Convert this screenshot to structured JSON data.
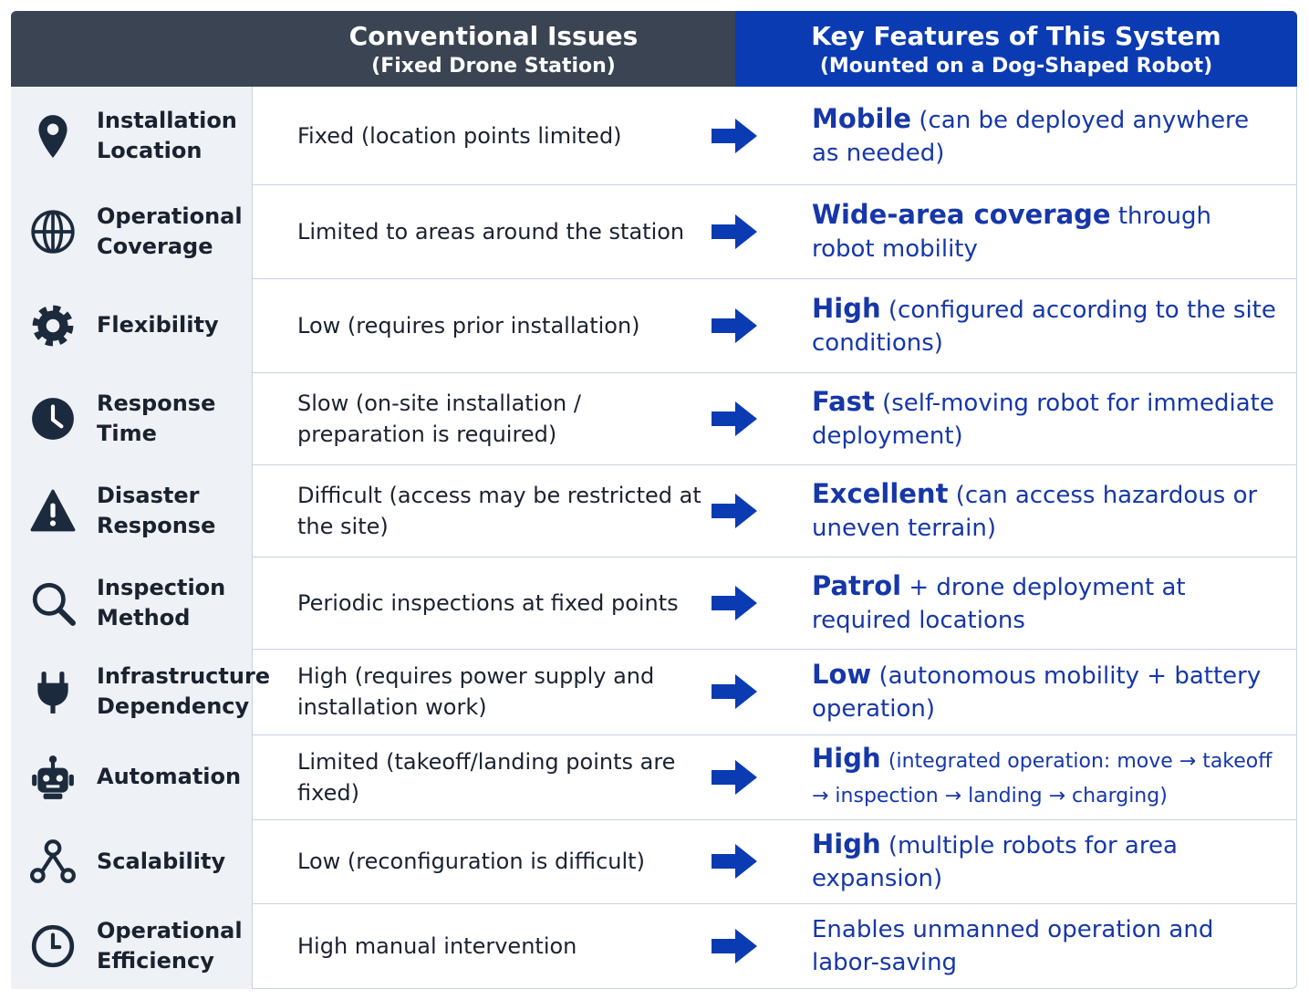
{
  "header": {
    "conventional": {
      "title": "Conventional Issues",
      "subtitle": "(Fixed Drone Station)"
    },
    "features": {
      "title": "Key Features of This System",
      "subtitle": "(Mounted on a Dog-Shaped Robot)"
    }
  },
  "rows": [
    {
      "label": "Installation Location",
      "conventional": "Fixed (location points limited)",
      "feature_bold": "Mobile",
      "feature_rest": "(can be deployed anywhere as needed)"
    },
    {
      "label": "Operational Coverage",
      "conventional": "Limited to areas around the station",
      "feature_bold": "Wide-area coverage",
      "feature_rest": "through robot mobility"
    },
    {
      "label": "Flexibility",
      "conventional": "Low (requires prior installation)",
      "feature_bold": "High",
      "feature_rest": "(configured according to the site conditions)"
    },
    {
      "label": "Response Time",
      "conventional": "Slow (on-site installation / preparation is required)",
      "feature_bold": "Fast",
      "feature_rest": "(self-moving robot for immediate deployment)"
    },
    {
      "label": "Disaster Response",
      "conventional": "Difficult (access may be restricted at the site)",
      "feature_bold": "Excellent",
      "feature_rest": "(can access hazardous or uneven terrain)"
    },
    {
      "label": "Inspection Method",
      "conventional": "Periodic inspections at fixed points",
      "feature_bold": "Patrol",
      "feature_rest": "+ drone deployment at required locations"
    },
    {
      "label": "Infrastructure Dependency",
      "conventional": "High (requires power supply and installation work)",
      "feature_bold": "Low",
      "feature_rest": "(autonomous mobility + battery operation)"
    },
    {
      "label": "Automation",
      "conventional": "Limited (takeoff/landing points are fixed)",
      "feature_bold": "High",
      "feature_rest": "(integrated operation: move → takeoff → inspection → landing → charging)"
    },
    {
      "label": "Scalability",
      "conventional": "Low (reconfiguration is difficult)",
      "feature_bold": "High",
      "feature_rest": "(multiple robots for area expansion)"
    },
    {
      "label": "Operational Efficiency",
      "conventional": "High manual intervention",
      "feature_rest": "Enables unmanned operation and labor-saving"
    }
  ]
}
